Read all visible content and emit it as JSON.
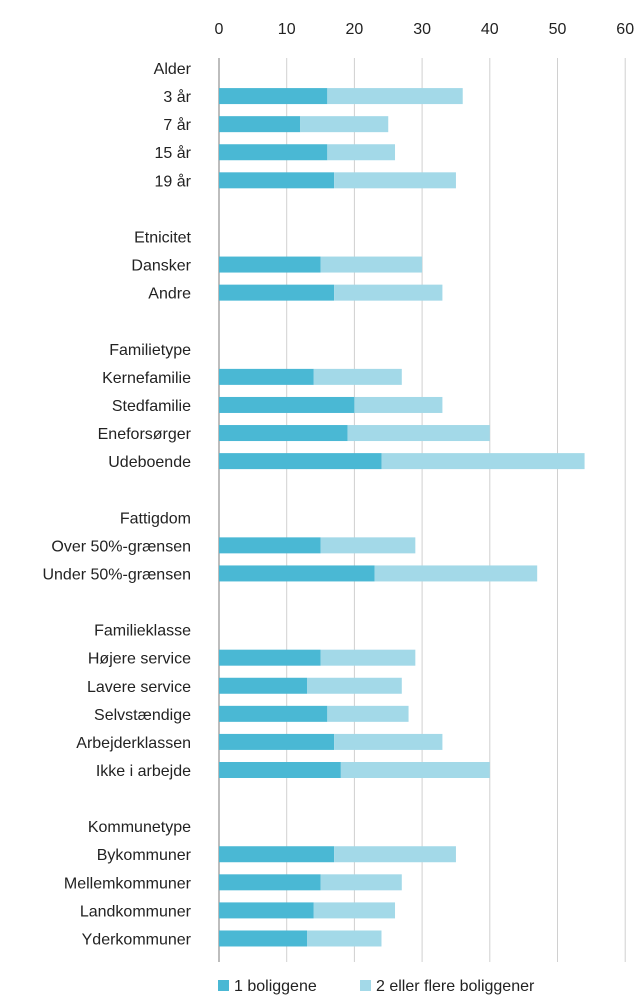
{
  "chart_data": {
    "type": "bar",
    "orientation": "horizontal",
    "stacked": true,
    "xlim": [
      0,
      60
    ],
    "x_ticks": [
      0,
      10,
      20,
      30,
      40,
      50,
      60
    ],
    "x_tick_labels": [
      "0",
      "10",
      "20",
      "30",
      "40",
      "50",
      "60"
    ],
    "grid": true,
    "legend_position": "bottom",
    "colors": [
      "#4ab8d4",
      "#a3d9e8"
    ],
    "series_names": [
      "1 boliggene",
      "2 eller flere boliggener"
    ],
    "rows": [
      {
        "label": "Alder",
        "header": true
      },
      {
        "label": "3 år",
        "values": [
          16,
          20
        ]
      },
      {
        "label": "7 år",
        "values": [
          12,
          13
        ]
      },
      {
        "label": "15 år",
        "values": [
          16,
          10
        ]
      },
      {
        "label": "19 år",
        "values": [
          17,
          18
        ]
      },
      {
        "label": "Etnicitet",
        "header": true
      },
      {
        "label": "Dansker",
        "values": [
          15,
          15
        ]
      },
      {
        "label": "Andre",
        "values": [
          17,
          16
        ]
      },
      {
        "label": "Familietype",
        "header": true
      },
      {
        "label": "Kernefamilie",
        "values": [
          14,
          13
        ]
      },
      {
        "label": "Stedfamilie",
        "values": [
          20,
          13
        ]
      },
      {
        "label": "Eneforsørger",
        "values": [
          19,
          21
        ]
      },
      {
        "label": "Udeboende",
        "values": [
          24,
          30
        ]
      },
      {
        "label": "Fattigdom",
        "header": true
      },
      {
        "label": "Over 50%-grænsen",
        "values": [
          15,
          14
        ]
      },
      {
        "label": "Under 50%-grænsen",
        "values": [
          23,
          24
        ]
      },
      {
        "label": "Familieklasse",
        "header": true
      },
      {
        "label": "Højere service",
        "values": [
          15,
          14
        ]
      },
      {
        "label": "Lavere service",
        "values": [
          13,
          14
        ]
      },
      {
        "label": "Selvstændige",
        "values": [
          16,
          12
        ]
      },
      {
        "label": "Arbejderklassen",
        "values": [
          17,
          16
        ]
      },
      {
        "label": "Ikke i arbejde",
        "values": [
          18,
          22
        ]
      },
      {
        "label": "Kommunetype",
        "header": true
      },
      {
        "label": "Bykommuner",
        "values": [
          17,
          18
        ]
      },
      {
        "label": "Mellemkommuner",
        "values": [
          15,
          12
        ]
      },
      {
        "label": "Landkommuner",
        "values": [
          14,
          12
        ]
      },
      {
        "label": "Yderkommuner",
        "values": [
          13,
          11
        ]
      }
    ]
  }
}
